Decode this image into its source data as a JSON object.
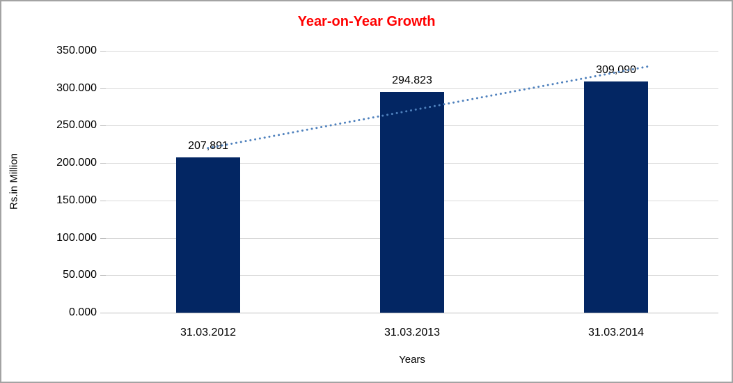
{
  "chart_data": {
    "type": "bar",
    "title": "Year-on-Year Growth",
    "title_color": "#ff0000",
    "xlabel": "Years",
    "ylabel": "Rs.in Million",
    "categories": [
      "31.03.2012",
      "31.03.2013",
      "31.03.2014"
    ],
    "values": [
      207.891,
      294.823,
      309.09
    ],
    "value_labels": [
      "207,891",
      "294.823",
      "309,090"
    ],
    "ylim": [
      0,
      350
    ],
    "ytick_step": 50,
    "ytick_labels": [
      "0.000",
      "50.000",
      "100.000",
      "150.000",
      "200.000",
      "250.000",
      "300.000",
      "350.000"
    ],
    "grid": true,
    "legend": "none",
    "bar_color": "#032663",
    "trendline": {
      "type": "linear",
      "style": "round-dot",
      "color": "#4f81bd"
    },
    "gridline_color": "#d9d9d9",
    "axis_line_color": "#bfbfbf",
    "frame_border_color": "#a3a3a3"
  }
}
